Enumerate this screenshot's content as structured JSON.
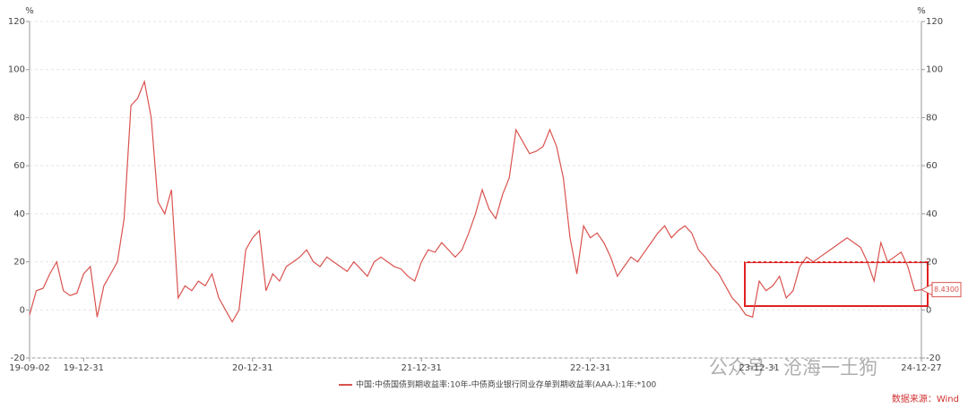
{
  "chart_data": {
    "type": "line",
    "y_unit": "%",
    "y2_unit": "%",
    "categories": [
      "19-09-02",
      null,
      null,
      null,
      null,
      null,
      null,
      null,
      "19-12-31",
      null,
      null,
      null,
      null,
      null,
      null,
      null,
      null,
      null,
      null,
      null,
      null,
      null,
      null,
      null,
      null,
      null,
      null,
      null,
      null,
      null,
      null,
      null,
      null,
      "20-12-31",
      null,
      null,
      null,
      null,
      null,
      null,
      null,
      null,
      null,
      null,
      null,
      null,
      null,
      null,
      null,
      null,
      null,
      null,
      null,
      null,
      null,
      null,
      null,
      null,
      "21-12-31",
      null,
      null,
      null,
      null,
      null,
      null,
      null,
      null,
      null,
      null,
      null,
      null,
      null,
      null,
      null,
      null,
      null,
      null,
      null,
      null,
      null,
      null,
      null,
      null,
      "22-12-31",
      null,
      null,
      null,
      null,
      null,
      null,
      null,
      null,
      null,
      null,
      null,
      null,
      null,
      null,
      null,
      null,
      null,
      null,
      null,
      null,
      null,
      null,
      null,
      null,
      "23-12-31",
      null,
      null,
      null,
      null,
      null,
      null,
      null,
      null,
      null,
      null,
      null,
      null,
      null,
      null,
      null,
      null,
      null,
      null,
      null,
      null,
      null,
      null,
      null,
      "24-12-27"
    ],
    "series": [
      {
        "name": "中国:中债国债到期收益率:10年-中债商业银行同业存单到期收益率(AAA-):1年:*100",
        "color": "#d9534f",
        "values": [
          -2,
          8,
          9,
          15,
          20,
          8,
          6,
          7,
          15,
          18,
          -3,
          10,
          15,
          20,
          38,
          85,
          88,
          95,
          80,
          45,
          40,
          50,
          5,
          10,
          8,
          12,
          10,
          15,
          5,
          0,
          -5,
          0,
          25,
          30,
          33,
          8,
          15,
          12,
          18,
          20,
          22,
          25,
          20,
          18,
          22,
          20,
          18,
          16,
          20,
          17,
          14,
          20,
          22,
          20,
          18,
          17,
          14,
          12,
          20,
          25,
          24,
          28,
          25,
          22,
          25,
          32,
          40,
          50,
          42,
          38,
          48,
          55,
          75,
          70,
          65,
          66,
          68,
          75,
          68,
          55,
          30,
          15,
          35,
          30,
          32,
          28,
          22,
          14,
          18,
          22,
          20,
          24,
          28,
          32,
          35,
          30,
          33,
          35,
          32,
          25,
          22,
          18,
          15,
          10,
          5,
          2,
          -2,
          -3,
          12,
          8,
          10,
          14,
          5,
          8,
          18,
          22,
          20,
          22,
          24,
          26,
          28,
          30,
          28,
          26,
          20,
          12,
          28,
          20,
          22,
          24,
          18,
          8,
          8.43
        ]
      }
    ],
    "value_labels": [
      null,
      null,
      null,
      null,
      null,
      null,
      null,
      null,
      null,
      null,
      null,
      null,
      null,
      null,
      null,
      null,
      null,
      null,
      null,
      null,
      null,
      null,
      null,
      null,
      null,
      null,
      null,
      null,
      null,
      null,
      null,
      null,
      null,
      null,
      null,
      null,
      null,
      null,
      null,
      null,
      null,
      null,
      null,
      null,
      null,
      null,
      null,
      null,
      null,
      null,
      null,
      null,
      null,
      null,
      null,
      null,
      null,
      null,
      null,
      null,
      null,
      null,
      null,
      null,
      null,
      null,
      null,
      null,
      null,
      null,
      null,
      null,
      null,
      null,
      null,
      null,
      null,
      null,
      null,
      null,
      null,
      null,
      null,
      null,
      null,
      null,
      null,
      null,
      null,
      null,
      null,
      null,
      null,
      null,
      null,
      null,
      null,
      null,
      null,
      null,
      null,
      null,
      null,
      null,
      null,
      null,
      null,
      null,
      null,
      null,
      null,
      null,
      null,
      null,
      null,
      null,
      null,
      null,
      null,
      null,
      null,
      null,
      null,
      null,
      null,
      null,
      null,
      null,
      null,
      null,
      null,
      null,
      "8.4300"
    ],
    "ylim": [
      -20,
      120
    ],
    "yticks": [
      -20,
      0,
      20,
      40,
      60,
      80,
      100,
      120
    ],
    "y2lim": [
      -20,
      120
    ],
    "y2ticks": [
      -20,
      0,
      20,
      40,
      60,
      80,
      100,
      120
    ],
    "grid": true,
    "source": "数据来源：Wind",
    "watermark": "公众号 · 沧海一土狗"
  }
}
